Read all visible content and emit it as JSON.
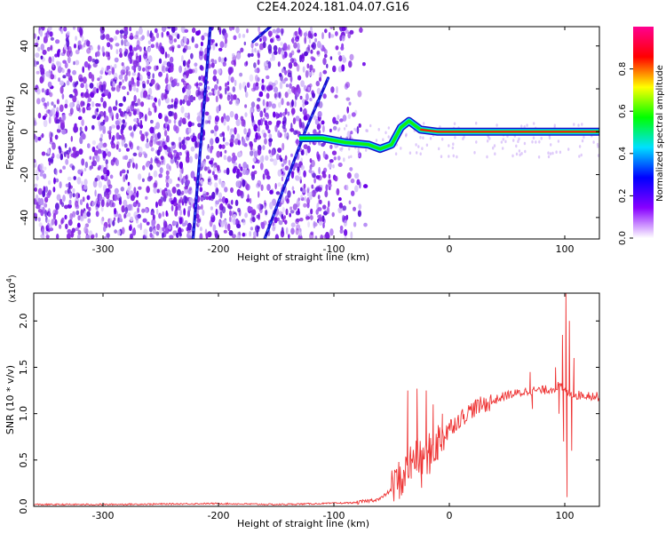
{
  "figure": {
    "title": "C2E4.2024.181.04.07.G16"
  },
  "chart_data": [
    {
      "type": "heatmap",
      "title": "C2E4.2024.181.04.07.G16",
      "xlabel": "Height of straight line (km)",
      "ylabel": "Frequency (Hz)",
      "xlim": [
        -360,
        130
      ],
      "ylim": [
        -50,
        49
      ],
      "xticks": [
        -300,
        -200,
        -100,
        0,
        100
      ],
      "yticks": [
        -40,
        -20,
        0,
        20,
        40
      ],
      "colorbar": {
        "label": "Normalized spectral amplitude",
        "range": [
          0.0,
          1.0
        ],
        "ticks": [
          "0.0",
          "0.2",
          "0.4",
          "0.6",
          "0.8"
        ],
        "colormap": [
          "#ffffff",
          "#8800ff",
          "#0000ff",
          "#00e0ff",
          "#00ff00",
          "#ffff00",
          "#ff0000",
          "#ff0090"
        ]
      },
      "features": {
        "noise_region_x": [
          -360,
          -100
        ],
        "noise_fade_x": [
          -120,
          -70
        ],
        "diagonal_streaks": [
          {
            "x": [
              -222,
              -207
            ],
            "y": [
              -50,
              49
            ]
          },
          {
            "x": [
              -160,
              -125
            ],
            "y": [
              -50,
              0
            ]
          },
          {
            "x": [
              -125,
              -105
            ],
            "y": [
              0,
              25
            ]
          },
          {
            "x": [
              -170,
              -155
            ],
            "y": [
              42,
              49
            ]
          }
        ],
        "carrier_trace": [
          [
            -130,
            -3
          ],
          [
            -110,
            -3
          ],
          [
            -90,
            -5
          ],
          [
            -70,
            -6
          ],
          [
            -60,
            -8
          ],
          [
            -50,
            -6
          ],
          [
            -42,
            2
          ],
          [
            -35,
            5
          ],
          [
            -25,
            1
          ],
          [
            -10,
            0
          ],
          [
            0,
            0
          ],
          [
            130,
            0
          ]
        ]
      },
      "grid": false,
      "legend": "colorbar-right"
    },
    {
      "type": "line",
      "xlabel": "Height of straight line (km)",
      "ylabel": "SNR (10 * v/v)",
      "yscale_label": "(x10",
      "yscale_exp": "4",
      "xlim": [
        -360,
        130
      ],
      "ylim": [
        0.0,
        2.3
      ],
      "xticks": [
        -300,
        -200,
        -100,
        0,
        100
      ],
      "yticks": [
        "0.0",
        "0.5",
        "1.0",
        "1.5",
        "2.0"
      ],
      "color": "#ee3333",
      "series": [
        {
          "points": [
            [
              -360,
              0.02
            ],
            [
              -300,
              0.02
            ],
            [
              -200,
              0.03
            ],
            [
              -150,
              0.02
            ],
            [
              -110,
              0.03
            ],
            [
              -80,
              0.04
            ],
            [
              -60,
              0.08
            ],
            [
              -50,
              0.18
            ],
            [
              -45,
              0.28
            ],
            [
              -40,
              0.3
            ],
            [
              -35,
              0.45
            ],
            [
              -30,
              0.55
            ],
            [
              -25,
              0.5
            ],
            [
              -20,
              0.55
            ],
            [
              -15,
              0.6
            ],
            [
              -10,
              0.7
            ],
            [
              -5,
              0.78
            ],
            [
              0,
              0.85
            ],
            [
              10,
              0.95
            ],
            [
              20,
              1.05
            ],
            [
              30,
              1.1
            ],
            [
              40,
              1.15
            ],
            [
              50,
              1.2
            ],
            [
              60,
              1.22
            ],
            [
              70,
              1.25
            ],
            [
              80,
              1.25
            ],
            [
              90,
              1.27
            ],
            [
              95,
              1.3
            ],
            [
              100,
              1.25
            ],
            [
              105,
              1.22
            ],
            [
              110,
              1.2
            ],
            [
              120,
              1.2
            ],
            [
              130,
              1.18
            ]
          ]
        }
      ],
      "spikes": [
        [
          -36,
          1.25
        ],
        [
          -33,
          0.3
        ],
        [
          -28,
          1.27
        ],
        [
          -24,
          0.2
        ],
        [
          -20,
          1.25
        ],
        [
          -17,
          0.35
        ],
        [
          -14,
          1.1
        ],
        [
          -10,
          0.5
        ],
        [
          -6,
          1.0
        ],
        [
          70,
          1.45
        ],
        [
          72,
          1.05
        ],
        [
          92,
          1.5
        ],
        [
          95,
          1.0
        ],
        [
          98,
          1.85
        ],
        [
          99,
          0.7
        ],
        [
          101,
          2.3
        ],
        [
          102,
          0.1
        ],
        [
          104,
          2.0
        ],
        [
          106,
          0.6
        ],
        [
          108,
          1.6
        ]
      ],
      "grid": false
    }
  ]
}
